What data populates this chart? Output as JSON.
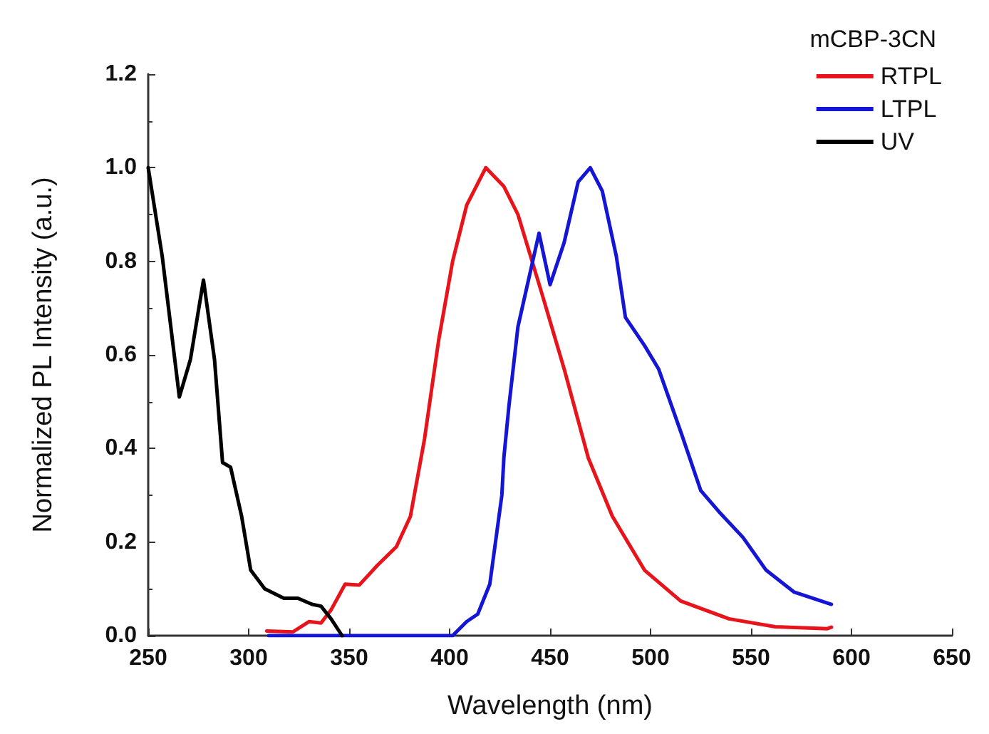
{
  "chart_data": {
    "type": "line",
    "xlabel": "Wavelength (nm)",
    "ylabel": "Normalized PL Intensity (a.u.)",
    "legend_title": "mCBP-3CN",
    "xlim": [
      250,
      650
    ],
    "xticks": [
      250,
      300,
      350,
      400,
      450,
      500,
      550,
      600,
      650
    ],
    "ylim": [
      0,
      1.2
    ],
    "yticks": [
      {
        "value": 0,
        "label": "0.0"
      },
      {
        "value": 0.2,
        "label": "0.2"
      },
      {
        "value": 0.4,
        "label": "0.4"
      },
      {
        "value": 0.6,
        "label": "0.6"
      },
      {
        "value": 0.8,
        "label": "0.8"
      },
      {
        "value": 1,
        "label": "1.0"
      },
      {
        "value": 1.2,
        "label": "1.2"
      }
    ],
    "legend": "top right",
    "grid": false,
    "marker": "none",
    "line_style": "solid",
    "series": [
      {
        "name": "RTPL",
        "color": "#e8141b",
        "x": [
          309,
          322,
          330,
          336,
          341,
          348,
          355,
          364,
          373.5,
          380.5,
          387.5,
          394.5,
          401.5,
          408.5,
          418,
          427,
          434,
          446,
          457,
          469,
          481,
          497,
          515,
          539,
          562,
          588,
          590
        ],
        "values": [
          0.01,
          0.008,
          0.03,
          0.027,
          0.055,
          0.11,
          0.108,
          0.15,
          0.19,
          0.255,
          0.42,
          0.63,
          0.8,
          0.92,
          1.0,
          0.96,
          0.9,
          0.73,
          0.57,
          0.38,
          0.255,
          0.14,
          0.074,
          0.036,
          0.019,
          0.015,
          0.018
        ]
      },
      {
        "name": "LTPL",
        "color": "#1515d6",
        "x": [
          310,
          350,
          401.5,
          408.5,
          414,
          420,
          426,
          427,
          429.5,
          434,
          444.5,
          450,
          457,
          464,
          470,
          476,
          483,
          487.5,
          497,
          504,
          515.5,
          525,
          534,
          546,
          557.5,
          571.5,
          590
        ],
        "values": [
          0,
          0,
          0,
          0.03,
          0.046,
          0.11,
          0.3,
          0.38,
          0.49,
          0.66,
          0.86,
          0.75,
          0.84,
          0.97,
          1.0,
          0.95,
          0.81,
          0.68,
          0.62,
          0.57,
          0.43,
          0.31,
          0.265,
          0.21,
          0.14,
          0.093,
          0.067
        ]
      },
      {
        "name": "UV",
        "color": "#000000",
        "x": [
          250,
          257,
          265.5,
          271,
          277.5,
          283,
          287,
          291,
          296.5,
          301,
          308,
          317.5,
          324.5,
          331.5,
          336,
          341,
          346.5
        ],
        "values": [
          1.0,
          0.81,
          0.51,
          0.59,
          0.76,
          0.59,
          0.37,
          0.36,
          0.255,
          0.14,
          0.1,
          0.08,
          0.08,
          0.067,
          0.063,
          0.036,
          0
        ]
      }
    ]
  }
}
